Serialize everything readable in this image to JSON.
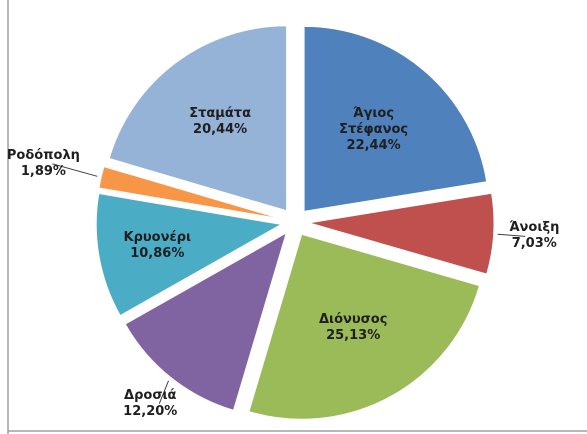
{
  "chart_data": {
    "type": "pie",
    "categories": [
      "Άγιος Στέφανος",
      "Άνοιξη",
      "Διόνυσος",
      "Δροσιά",
      "Κρυονέρι",
      "Ροδόπολη",
      "Σταμάτα"
    ],
    "values": [
      22.44,
      7.03,
      25.13,
      12.2,
      10.86,
      1.89,
      20.44
    ],
    "value_labels": [
      "22,44%",
      "7,03%",
      "25,13%",
      "12,20%",
      "10,86%",
      "1,89%",
      "20,44%"
    ],
    "colors": [
      "#4f81bd",
      "#c0504d",
      "#9bbb59",
      "#8064a2",
      "#4bacc6",
      "#f79646",
      "#95b3d7"
    ]
  }
}
